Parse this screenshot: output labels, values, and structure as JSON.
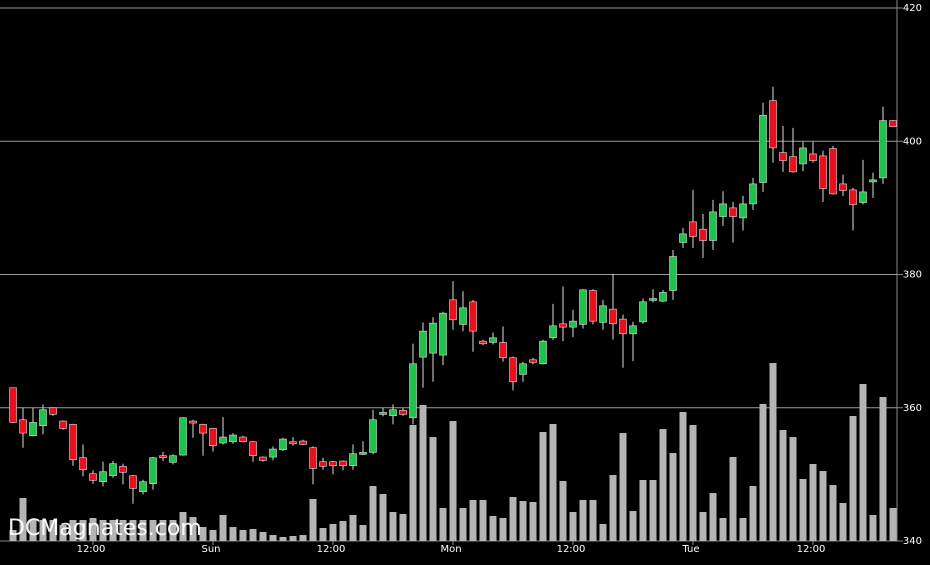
{
  "chart_data": {
    "type": "candlestick",
    "watermark": "DCMagnates.com",
    "categories": [
      null,
      null,
      null,
      null,
      null,
      null,
      null,
      null,
      "12:00",
      null,
      null,
      null,
      null,
      null,
      null,
      null,
      null,
      null,
      null,
      null,
      "Sun",
      null,
      null,
      null,
      null,
      null,
      null,
      null,
      null,
      null,
      null,
      null,
      "12:00",
      null,
      null,
      null,
      null,
      null,
      null,
      null,
      null,
      null,
      null,
      null,
      "Mon",
      null,
      null,
      null,
      null,
      null,
      null,
      null,
      null,
      null,
      null,
      null,
      "12:00",
      null,
      null,
      null,
      null,
      null,
      null,
      null,
      null,
      null,
      null,
      null,
      "Tue",
      null,
      null,
      null,
      null,
      null,
      null,
      null,
      null,
      null,
      null,
      null,
      "12:00",
      null,
      null,
      null,
      null,
      null,
      null,
      null,
      null
    ],
    "open": [
      363,
      358.2,
      355.8,
      357.3,
      360,
      358,
      357.5,
      352.5,
      350.1,
      348.9,
      349.8,
      351.2,
      349.8,
      347.4,
      348.6,
      352.8,
      351.8,
      352.9,
      358,
      357.5,
      356.9,
      354.7,
      354.9,
      355.6,
      354.9,
      352.6,
      352.6,
      353.7,
      354.9,
      355,
      354,
      351.9,
      351.9,
      352,
      351.3,
      353,
      353.3,
      359,
      358.8,
      359.6,
      358.5,
      367.6,
      368.2,
      367.9,
      376.2,
      372.5,
      375.9,
      370,
      369.8,
      369.8,
      367.5,
      365,
      367.2,
      366.6,
      370.5,
      372.6,
      372.1,
      372.5,
      377.6,
      372.8,
      374.8,
      373.3,
      371.1,
      372.9,
      376.1,
      376,
      377.6,
      384.8,
      387.9,
      386.8,
      385.1,
      388.7,
      390,
      388.5,
      390.6,
      393.8,
      406.1,
      398.3,
      397.7,
      396.6,
      398.1,
      397.8,
      398.9,
      393.6,
      392.7,
      390.8,
      393.9,
      394.5,
      403.1
    ],
    "high": [
      363,
      360,
      360,
      360.5,
      360,
      358.1,
      357.6,
      354.5,
      350.6,
      351.9,
      352,
      351.6,
      349.9,
      349.2,
      352.6,
      353.4,
      353,
      358.6,
      358.2,
      357.6,
      357,
      358.6,
      356.2,
      355.8,
      355,
      352.7,
      354.2,
      355.5,
      355.6,
      355.2,
      354.2,
      352.5,
      352,
      352.1,
      354.5,
      355,
      359.7,
      360,
      360.5,
      360,
      369.6,
      372.8,
      373.6,
      374.4,
      379,
      377.5,
      376.2,
      370.2,
      371.3,
      372.2,
      367.7,
      366.9,
      367.5,
      370.2,
      375.6,
      378.2,
      374.7,
      377.8,
      377.8,
      376.2,
      380.1,
      374,
      372.9,
      376.4,
      377.8,
      377.7,
      383.7,
      387,
      392.7,
      389.1,
      391.2,
      392.5,
      390.9,
      391.8,
      394.5,
      405.8,
      408.2,
      402.3,
      402,
      399.9,
      399.9,
      398.6,
      399.3,
      395,
      393,
      397.2,
      395.3,
      405.2,
      403.2
    ],
    "low": [
      357.7,
      354,
      355.7,
      356,
      358.8,
      356.7,
      351.3,
      349.7,
      348.6,
      348.2,
      349.5,
      348.5,
      345.6,
      347,
      347.7,
      352,
      351.5,
      352.8,
      355.5,
      352.8,
      353.4,
      354.5,
      354.6,
      354.8,
      351.9,
      351.9,
      352.1,
      353.5,
      354.3,
      354.4,
      348.5,
      350.7,
      350,
      350.6,
      350.7,
      352.9,
      353,
      358.7,
      357.5,
      358.8,
      357.5,
      363,
      363.9,
      366.4,
      371.7,
      371.5,
      368.4,
      369.4,
      369.5,
      366.9,
      362.6,
      363.9,
      366.5,
      366.5,
      370.2,
      370,
      370.6,
      371.9,
      372.5,
      371.7,
      370.2,
      366,
      367,
      372.6,
      375.8,
      375.9,
      376.2,
      384,
      384,
      382.5,
      383.7,
      387.3,
      384.8,
      386.6,
      389.7,
      392.4,
      396.8,
      395.4,
      395.3,
      395.5,
      396.8,
      390.9,
      392,
      391.8,
      386.6,
      390.5,
      391.5,
      393.6,
      402.1
    ],
    "close": [
      357.8,
      356.2,
      357.8,
      359.7,
      359,
      356.9,
      352.2,
      350.7,
      349.1,
      350.4,
      351.6,
      350.3,
      347.9,
      348.9,
      352.5,
      352.5,
      352.8,
      358.5,
      357.7,
      356.2,
      354.3,
      355.6,
      355.9,
      354.9,
      352.8,
      352.1,
      353.8,
      355.3,
      354.6,
      354.5,
      350.9,
      351.2,
      351.3,
      351.3,
      353.1,
      353.3,
      358.2,
      359.3,
      359.7,
      359,
      366.6,
      371.5,
      372.7,
      374.2,
      373.2,
      375,
      371.5,
      369.6,
      370.5,
      367.5,
      363.9,
      366.6,
      366.8,
      370,
      372.3,
      372.1,
      373,
      377.7,
      373,
      375.3,
      372.6,
      371.1,
      372.3,
      375.9,
      376.4,
      377.3,
      382.7,
      386.1,
      385.7,
      385.1,
      389.4,
      390.6,
      388.7,
      390.6,
      393.6,
      403.9,
      399,
      397.1,
      395.4,
      399,
      397.1,
      392.9,
      392.1,
      392.6,
      390.5,
      392.4,
      394.2,
      403.1,
      402.2
    ],
    "volume": [
      11,
      43,
      21,
      21,
      21,
      16,
      21,
      21,
      23,
      21,
      21,
      21,
      21,
      21,
      21,
      21,
      21,
      29,
      24,
      14,
      11,
      26,
      14,
      11,
      12,
      9,
      6,
      4,
      5,
      6,
      42,
      13,
      17,
      20,
      26,
      16,
      55,
      47,
      29,
      27,
      116,
      136,
      104,
      33,
      120,
      33,
      41,
      41,
      25,
      23,
      44,
      40,
      39,
      109,
      117,
      60,
      29,
      41,
      41,
      17,
      66,
      108,
      30,
      61,
      61,
      112,
      88,
      129,
      116,
      29,
      48,
      23,
      84,
      23,
      55,
      137,
      178,
      111,
      104,
      62,
      77,
      70,
      56,
      38,
      125,
      157,
      26,
      144,
      33
    ],
    "up_color": "#1fc24a",
    "down_color": "#e8101c",
    "volume_color": "#b4b4b4",
    "ylim": [
      340,
      420
    ],
    "yticks": [
      340,
      360,
      380,
      400,
      420
    ],
    "grid": true
  }
}
